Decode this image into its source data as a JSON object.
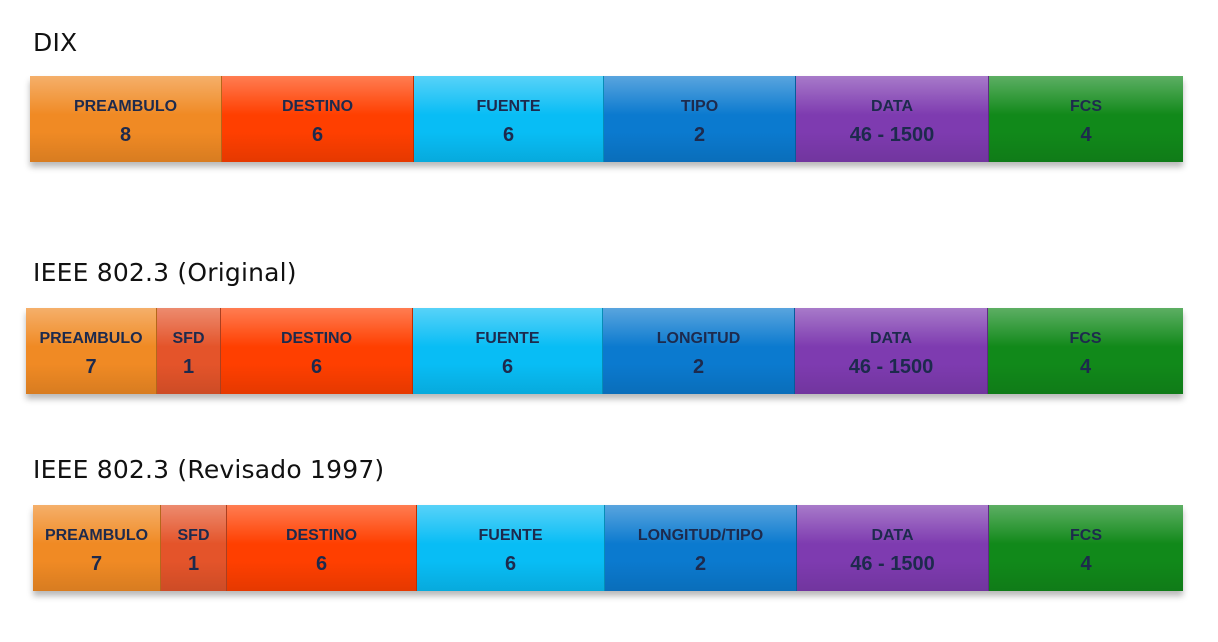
{
  "frames": [
    {
      "title": "DIX",
      "fields": [
        {
          "label": "PREAMBULO",
          "size": "8",
          "color": "#F08A24"
        },
        {
          "label": "DESTINO",
          "size": "6",
          "color": "#FF3F00"
        },
        {
          "label": "FUENTE",
          "size": "6",
          "color": "#08BDF5"
        },
        {
          "label": "TIPO",
          "size": "2",
          "color": "#0B7ACF"
        },
        {
          "label": "DATA",
          "size": "46 - 1500",
          "color": "#7E3BB0"
        },
        {
          "label": "FCS",
          "size": "4",
          "color": "#11891A"
        }
      ]
    },
    {
      "title": "IEEE 802.3 (Original)",
      "fields": [
        {
          "label": "PREAMBULO",
          "size": "7",
          "color": "#F08A24"
        },
        {
          "label": "SFD",
          "size": "1",
          "color": "#E4542A"
        },
        {
          "label": "DESTINO",
          "size": "6",
          "color": "#FF3F00"
        },
        {
          "label": "FUENTE",
          "size": "6",
          "color": "#08BDF5"
        },
        {
          "label": "LONGITUD",
          "size": "2",
          "color": "#0B7ACF"
        },
        {
          "label": "DATA",
          "size": "46 - 1500",
          "color": "#7E3BB0"
        },
        {
          "label": "FCS",
          "size": "4",
          "color": "#11891A"
        }
      ]
    },
    {
      "title": "IEEE 802.3 (Revisado 1997)",
      "fields": [
        {
          "label": "PREAMBULO",
          "size": "7",
          "color": "#F08A24"
        },
        {
          "label": "SFD",
          "size": "1",
          "color": "#E4542A"
        },
        {
          "label": "DESTINO",
          "size": "6",
          "color": "#FF3F00"
        },
        {
          "label": "FUENTE",
          "size": "6",
          "color": "#08BDF5"
        },
        {
          "label": "LONGITUD/TIPO",
          "size": "2",
          "color": "#0B7ACF"
        },
        {
          "label": "DATA",
          "size": "46 - 1500",
          "color": "#7E3BB0"
        },
        {
          "label": "FCS",
          "size": "4",
          "color": "#11891A"
        }
      ]
    }
  ]
}
